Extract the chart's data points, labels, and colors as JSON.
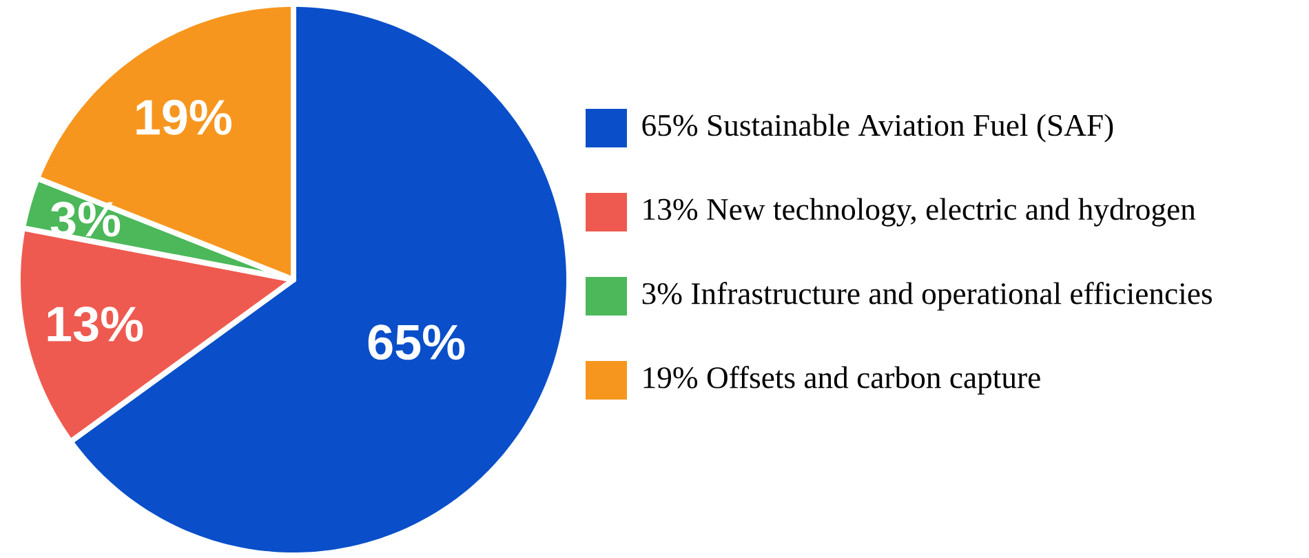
{
  "chart_data": {
    "type": "pie",
    "categories": [
      "65% Sustainable Aviation Fuel (SAF)",
      "13% New technology, electric and hydrogen",
      "3% Infrastructure and operational efficiencies",
      "19% Offsets and carbon capture"
    ],
    "values": [
      65,
      13,
      3,
      19
    ],
    "value_labels": [
      "65%",
      "13%",
      "3%",
      "19%"
    ],
    "colors": [
      "#0a4fc9",
      "#ef5a50",
      "#4cb85a",
      "#f7961e"
    ],
    "legend": "right"
  }
}
